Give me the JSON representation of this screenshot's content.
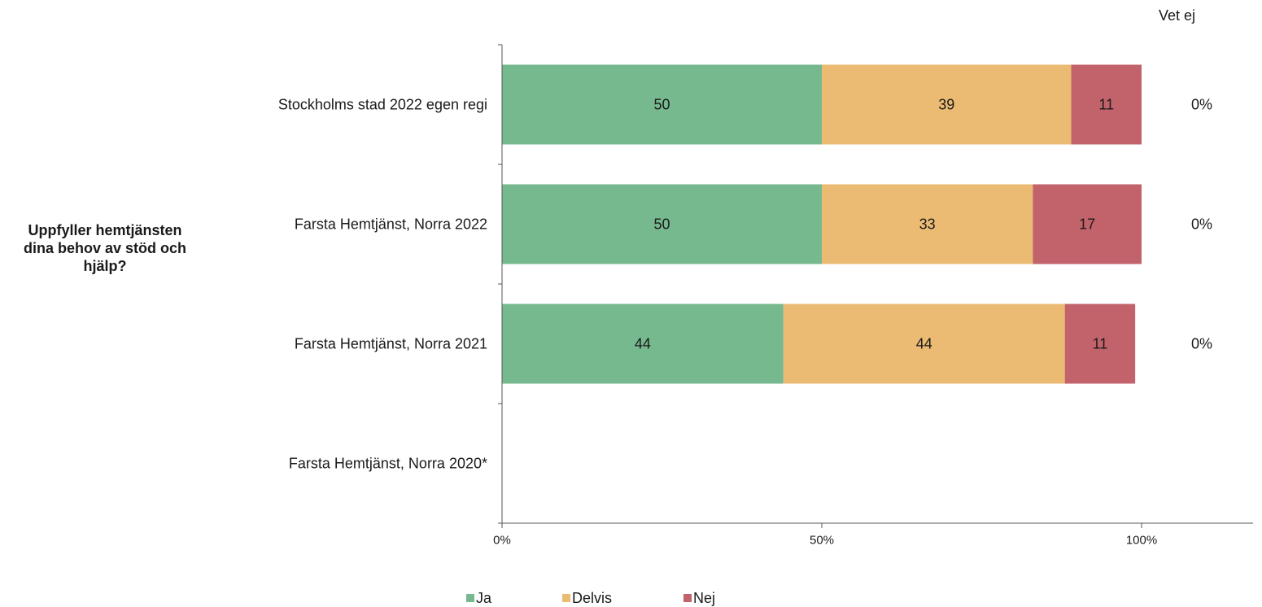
{
  "question": "Uppfyller hemtjänsten\ndina behov av stöd och\nhjälp?",
  "vet_ej_header": "Vet ej",
  "chart_data": {
    "type": "bar",
    "orientation": "horizontal",
    "stacked": true,
    "categories": [
      "Stockholms stad 2022 egen regi",
      "Farsta  Hemtjänst,  Norra 2022",
      "Farsta  Hemtjänst,  Norra 2021",
      "Farsta  Hemtjänst,  Norra 2020*"
    ],
    "series": [
      {
        "name": "Ja",
        "color": "#76b98f",
        "values": [
          50,
          50,
          44,
          null
        ]
      },
      {
        "name": "Delvis",
        "color": "#ebbb73",
        "values": [
          39,
          33,
          44,
          null
        ]
      },
      {
        "name": "Nej",
        "color": "#c2636c",
        "values": [
          11,
          17,
          11,
          null
        ]
      }
    ],
    "stack_totals": [
      100,
      100,
      100,
      null
    ],
    "vet_ej": [
      "0%",
      "0%",
      "0%",
      ""
    ],
    "xlim": [
      0,
      115
    ],
    "xticks": [
      {
        "value": 0,
        "label": "0%"
      },
      {
        "value": 50,
        "label": "50%"
      },
      {
        "value": 100,
        "label": "100%"
      }
    ],
    "legend": {
      "position": "bottom"
    },
    "grid": false
  }
}
